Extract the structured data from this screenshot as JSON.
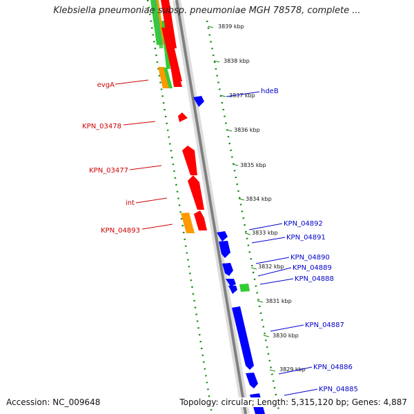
{
  "title": "Klebsiella pneumoniae subsp. pneumoniae MGH 78578, complete ...",
  "footer": {
    "accession": "Accession: NC_009648",
    "topology": "Topology: circular; Length: 5,315,120 bp; Genes: 4,887"
  },
  "colors": {
    "red": "#ff0000",
    "blue": "#0000ff",
    "orange": "#ff9900",
    "green": "#33cc33",
    "label_red": "#cc0000",
    "label_blue": "#0000cc",
    "tick_green": "#118811",
    "backbone": "#808080"
  },
  "ticks": [
    "3839 kbp",
    "3838 kbp",
    "3837 kbp",
    "3836 kbp",
    "3835 kbp",
    "3834 kbp",
    "3833 kbp",
    "3832 kbp",
    "3831 kbp",
    "3830 kbp",
    "3829 kbp"
  ],
  "left_labels": [
    "evgA",
    "KPN_03478",
    "KPN_03477",
    "int",
    "KPN_04893"
  ],
  "right_labels": [
    "hdeB",
    "KPN_04892",
    "KPN_04891",
    "KPN_04890",
    "KPN_04889",
    "KPN_04888",
    "KPN_04887",
    "KPN_04886",
    "KPN_04885"
  ]
}
